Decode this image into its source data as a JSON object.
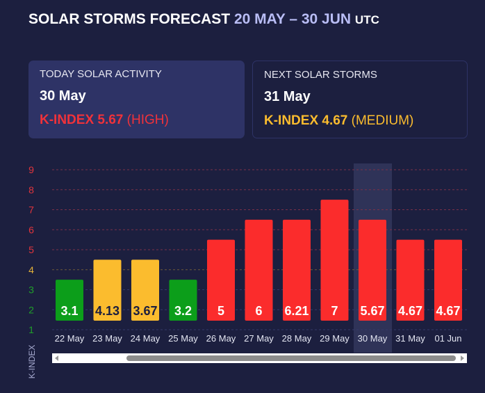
{
  "header": {
    "title": "SOLAR STORMS FORECAST",
    "range": "20 MAY – 30 JUN",
    "tz": "UTC"
  },
  "today": {
    "label": "TODAY SOLAR ACTIVITY",
    "date": "30 May",
    "k_label": "K-INDEX 5.67",
    "level": "(HIGH)",
    "color": "#f0323a"
  },
  "next": {
    "label": "NEXT SOLAR STORMS",
    "date": "31 May",
    "k_label": "K-INDEX 4.67",
    "level": "(MEDIUM)",
    "color": "#fbbc2e"
  },
  "chart_data": {
    "type": "bar",
    "ylabel": "K-INDEX",
    "yticks": [
      "1",
      "2",
      "3",
      "4",
      "5",
      "6",
      "7",
      "8",
      "9"
    ],
    "ylim": [
      1,
      9
    ],
    "categories": [
      "22 May",
      "23 May",
      "24 May",
      "25 May",
      "26 May",
      "27 May",
      "28 May",
      "29 May",
      "30 May",
      "31 May",
      "01 Jun"
    ],
    "values": [
      3.1,
      4.13,
      3.67,
      3.2,
      5,
      6,
      6.21,
      7,
      5.67,
      4.67,
      4.67
    ],
    "value_labels": [
      "3.1",
      "4.13",
      "3.67",
      "3.2",
      "5",
      "6",
      "6.21",
      "7",
      "5.67",
      "4.67",
      "4.67"
    ],
    "levels": [
      3,
      4,
      4,
      3,
      5,
      6,
      6,
      7,
      6,
      5,
      5
    ],
    "highlighted": "30 May",
    "colors": {
      "low": "#0c9e1a",
      "medium": "#fbbc2e",
      "high": "#fb2c2c"
    }
  }
}
